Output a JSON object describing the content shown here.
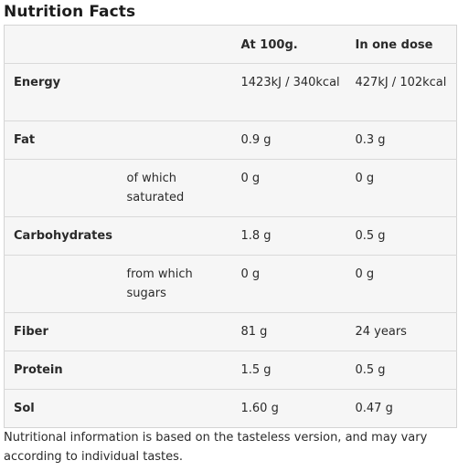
{
  "title": "Nutrition Facts",
  "columns": {
    "per100": "At 100g.",
    "perDose": "In one dose"
  },
  "rows": [
    {
      "name": "Energy",
      "sub": "",
      "per100": "1423kJ / 340kcal",
      "perDose": "427kJ / 102kcal"
    },
    {
      "name": "Fat",
      "sub": "",
      "per100": "0.9 g",
      "perDose": "0.3 g"
    },
    {
      "name": "",
      "sub": "of which saturated",
      "per100": "0 g",
      "perDose": "0 g"
    },
    {
      "name": "Carbohydrates",
      "sub": "",
      "per100": "1.8 g",
      "perDose": "0.5 g"
    },
    {
      "name": "",
      "sub": "from which sugars",
      "per100": "0 g",
      "perDose": "0 g"
    },
    {
      "name": "Fiber",
      "sub": "",
      "per100": "81 g",
      "perDose": "24 years"
    },
    {
      "name": "Protein",
      "sub": "",
      "per100": "1.5 g",
      "perDose": "0.5 g"
    },
    {
      "name": "Sol",
      "sub": "",
      "per100": "1.60 g",
      "perDose": "0.47 g"
    }
  ],
  "footnote": "Nutritional information is based on the tasteless version, and may vary according to individual tastes."
}
